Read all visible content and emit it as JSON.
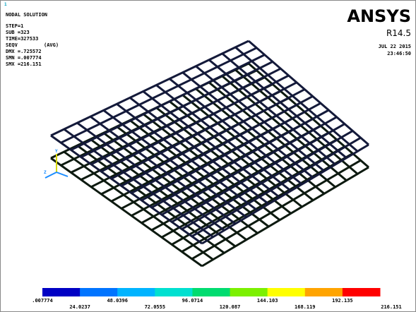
{
  "info": {
    "title": "NODAL SOLUTION",
    "lines": [
      "STEP=1",
      "SUB =323",
      "TIME=327533"
    ],
    "result": "SEQV",
    "result_mode": "(AVG)",
    "stats": [
      "DMX =.725572",
      "SMN =.007774",
      "SMX =216.151"
    ]
  },
  "brand": {
    "logo": "ANSYS",
    "release": "R14.5",
    "date": "JUL 22 2015",
    "time": "23:46:50"
  },
  "legend": {
    "colors": [
      "#0000c4",
      "#0074ff",
      "#00b4ff",
      "#00e0d0",
      "#00dc70",
      "#7cf000",
      "#ffff00",
      "#ffa400",
      "#ff0000"
    ],
    "labels": [
      ".007774",
      "24.0237",
      "48.0396",
      "72.0555",
      "96.0714",
      "120.087",
      "144.103",
      "168.119",
      "192.135",
      "216.151"
    ]
  }
}
